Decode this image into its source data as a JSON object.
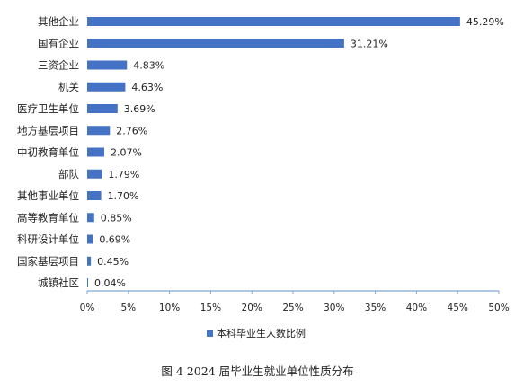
{
  "chart_data": {
    "type": "bar",
    "orientation": "horizontal",
    "categories": [
      "其他企业",
      "国有企业",
      "三资企业",
      "机关",
      "医疗卫生单位",
      "地方基层项目",
      "中初教育单位",
      "部队",
      "其他事业单位",
      "高等教育单位",
      "科研设计单位",
      "国家基层项目",
      "城镇社区"
    ],
    "values": [
      45.29,
      31.21,
      4.83,
      4.63,
      3.69,
      2.76,
      2.07,
      1.79,
      1.7,
      0.85,
      0.69,
      0.45,
      0.04
    ],
    "value_labels": [
      "45.29%",
      "31.21%",
      "4.83%",
      "4.63%",
      "3.69%",
      "2.76%",
      "2.07%",
      "1.79%",
      "1.70%",
      "0.85%",
      "0.69%",
      "0.45%",
      "0.04%"
    ],
    "series": [
      {
        "name": "本科毕业生人数比例"
      }
    ],
    "x_ticks": [
      "0%",
      "5%",
      "10%",
      "15%",
      "20%",
      "25%",
      "30%",
      "35%",
      "40%",
      "45%",
      "50%"
    ],
    "xlim": [
      0,
      50
    ],
    "grid": false,
    "legend_position": "bottom",
    "bar_color": "#4472c4",
    "axis_color": "#7fa6d6"
  },
  "caption": "图 4  2024 届毕业生就业单位性质分布"
}
